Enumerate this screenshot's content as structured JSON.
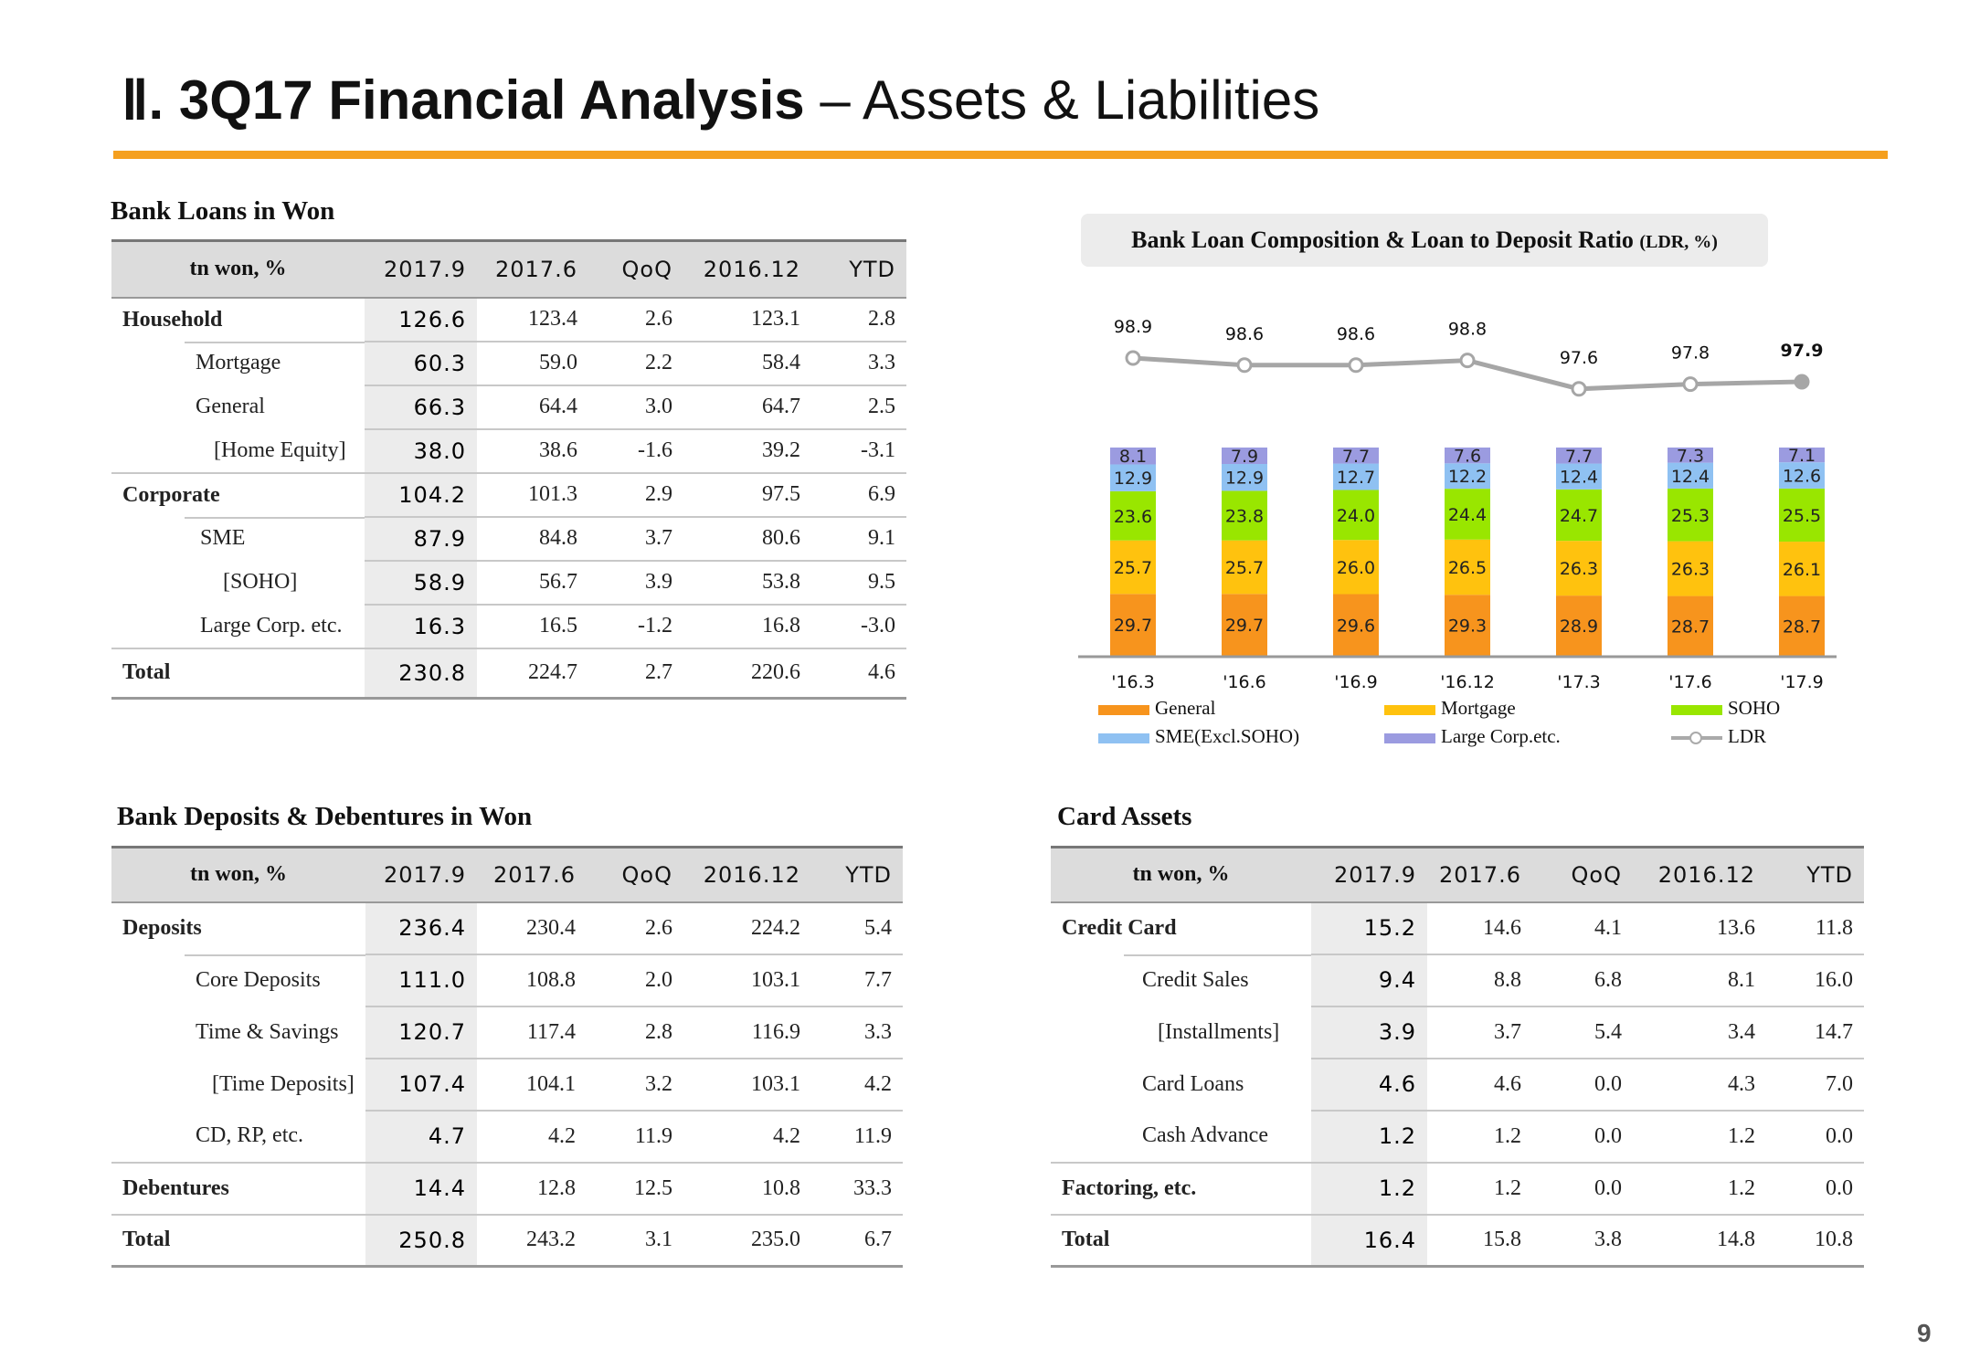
{
  "title": {
    "main": "Ⅱ. 3Q17 Financial Analysis",
    "sub": "– Assets & Liabilities"
  },
  "loans": {
    "title": "Bank Loans in Won",
    "headers": [
      "tn won, %",
      "2017.9",
      "2017.6",
      "QoQ",
      "2016.12",
      "YTD"
    ],
    "rows": [
      [
        "Household",
        "126.6",
        "123.4",
        "2.6",
        "123.1",
        "2.8"
      ],
      [
        "Mortgage",
        "60.3",
        "59.0",
        "2.2",
        "58.4",
        "3.3"
      ],
      [
        "General",
        "66.3",
        "64.4",
        "3.0",
        "64.7",
        "2.5"
      ],
      [
        "[Home Equity]",
        "38.0",
        "38.6",
        "-1.6",
        "39.2",
        "-3.1"
      ],
      [
        "Corporate",
        "104.2",
        "101.3",
        "2.9",
        "97.5",
        "6.9"
      ],
      [
        "SME",
        "87.9",
        "84.8",
        "3.7",
        "80.6",
        "9.1"
      ],
      [
        "[SOHO]",
        "58.9",
        "56.7",
        "3.9",
        "53.8",
        "9.5"
      ],
      [
        "Large Corp. etc.",
        "16.3",
        "16.5",
        "-1.2",
        "16.8",
        "-3.0"
      ],
      [
        "Total",
        "230.8",
        "224.7",
        "2.7",
        "220.6",
        "4.6"
      ]
    ]
  },
  "deposits": {
    "title": "Bank Deposits & Debentures in Won",
    "headers": [
      "tn won, %",
      "2017.9",
      "2017.6",
      "QoQ",
      "2016.12",
      "YTD"
    ],
    "rows": [
      [
        "Deposits",
        "236.4",
        "230.4",
        "2.6",
        "224.2",
        "5.4"
      ],
      [
        "Core Deposits",
        "111.0",
        "108.8",
        "2.0",
        "103.1",
        "7.7"
      ],
      [
        "Time & Savings",
        "120.7",
        "117.4",
        "2.8",
        "116.9",
        "3.3"
      ],
      [
        "[Time Deposits]",
        "107.4",
        "104.1",
        "3.2",
        "103.1",
        "4.2"
      ],
      [
        "CD, RP, etc.",
        "4.7",
        "4.2",
        "11.9",
        "4.2",
        "11.9"
      ],
      [
        "Debentures",
        "14.4",
        "12.8",
        "12.5",
        "10.8",
        "33.3"
      ],
      [
        "Total",
        "250.8",
        "243.2",
        "3.1",
        "235.0",
        "6.7"
      ]
    ]
  },
  "card": {
    "title": "Card Assets",
    "headers": [
      "tn won, %",
      "2017.9",
      "2017.6",
      "QoQ",
      "2016.12",
      "YTD"
    ],
    "rows": [
      [
        "Credit Card",
        "15.2",
        "14.6",
        "4.1",
        "13.6",
        "11.8"
      ],
      [
        "Credit Sales",
        "9.4",
        "8.8",
        "6.8",
        "8.1",
        "16.0"
      ],
      [
        "[Installments]",
        "3.9",
        "3.7",
        "5.4",
        "3.4",
        "14.7"
      ],
      [
        "Card Loans",
        "4.6",
        "4.6",
        "0.0",
        "4.3",
        "7.0"
      ],
      [
        "Cash Advance",
        "1.2",
        "1.2",
        "0.0",
        "1.2",
        "0.0"
      ],
      [
        "Factoring, etc.",
        "1.2",
        "1.2",
        "0.0",
        "1.2",
        "0.0"
      ],
      [
        "Total",
        "16.4",
        "15.8",
        "3.8",
        "14.8",
        "10.8"
      ]
    ]
  },
  "chart_title": {
    "main": "Bank Loan Composition & Loan to Deposit Ratio",
    "unit": "(LDR, %)"
  },
  "chart_data": {
    "type": "bar",
    "stacked": true,
    "categories": [
      "'16.3",
      "'16.6",
      "'16.9",
      "'16.12",
      "'17.3",
      "'17.6",
      "'17.9"
    ],
    "series": [
      {
        "name": "General",
        "color": "#f7941d",
        "values": [
          29.7,
          29.7,
          29.6,
          29.3,
          28.9,
          28.7,
          28.7
        ]
      },
      {
        "name": "Mortgage",
        "color": "#ffc20e",
        "values": [
          25.7,
          25.7,
          26.0,
          26.5,
          26.3,
          26.3,
          26.1
        ]
      },
      {
        "name": "SOHO",
        "color": "#99e600",
        "values": [
          23.6,
          23.8,
          24.0,
          24.4,
          24.7,
          25.3,
          25.5
        ]
      },
      {
        "name": "SME(Excl.SOHO)",
        "color": "#8fc1f2",
        "values": [
          12.9,
          12.9,
          12.7,
          12.2,
          12.4,
          12.4,
          12.6
        ]
      },
      {
        "name": "Large Corp.etc.",
        "color": "#9b9be0",
        "values": [
          8.1,
          7.9,
          7.7,
          7.6,
          7.7,
          7.3,
          7.1
        ]
      }
    ],
    "line": {
      "name": "LDR",
      "color": "#a6a6a6",
      "values": [
        98.9,
        98.6,
        98.6,
        98.8,
        97.6,
        97.8,
        97.9
      ]
    },
    "legend_position": "bottom",
    "grid": false
  },
  "page_number": "9"
}
